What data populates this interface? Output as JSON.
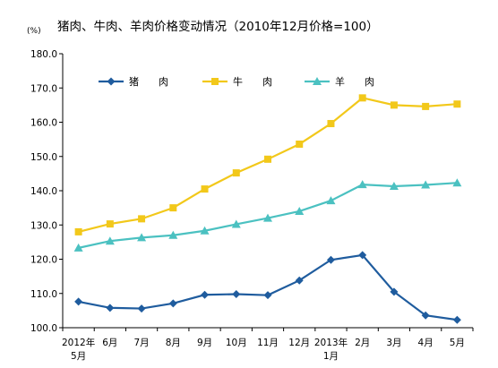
{
  "chart_data": {
    "type": "line",
    "title": "猪肉、牛肉、羊肉价格变动情况（2010年12月价格=100）",
    "unit": "(%)",
    "ylim": [
      100,
      180
    ],
    "yticks": [
      "100.0",
      "110.0",
      "120.0",
      "130.0",
      "140.0",
      "150.0",
      "160.0",
      "170.0",
      "180.0"
    ],
    "categories": [
      [
        "2012年",
        "5月"
      ],
      [
        "6月"
      ],
      [
        "7月"
      ],
      [
        "8月"
      ],
      [
        "9月"
      ],
      [
        "10月"
      ],
      [
        "11月"
      ],
      [
        "12月"
      ],
      [
        "2013年",
        "1月"
      ],
      [
        "2月"
      ],
      [
        "3月"
      ],
      [
        "4月"
      ],
      [
        "5月"
      ]
    ],
    "legend_position": "top-left",
    "grid": false,
    "series": [
      {
        "name": "猪　　肉",
        "color": "#1f5c9e",
        "marker": "diamond",
        "values": [
          107.6,
          105.8,
          105.6,
          107.1,
          109.6,
          109.8,
          109.5,
          113.8,
          119.8,
          121.2,
          110.5,
          103.6,
          102.3
        ]
      },
      {
        "name": "牛　　肉",
        "color": "#f2c81a",
        "marker": "square",
        "values": [
          128.0,
          130.3,
          131.8,
          135.0,
          140.5,
          145.2,
          149.2,
          153.6,
          159.6,
          167.1,
          165.0,
          164.6,
          165.3
        ]
      },
      {
        "name": "羊　　肉",
        "color": "#4bc1c1",
        "marker": "triangle",
        "values": [
          123.3,
          125.3,
          126.3,
          127.0,
          128.3,
          130.2,
          132.0,
          134.0,
          137.1,
          141.8,
          141.3,
          141.7,
          142.3
        ]
      }
    ]
  }
}
